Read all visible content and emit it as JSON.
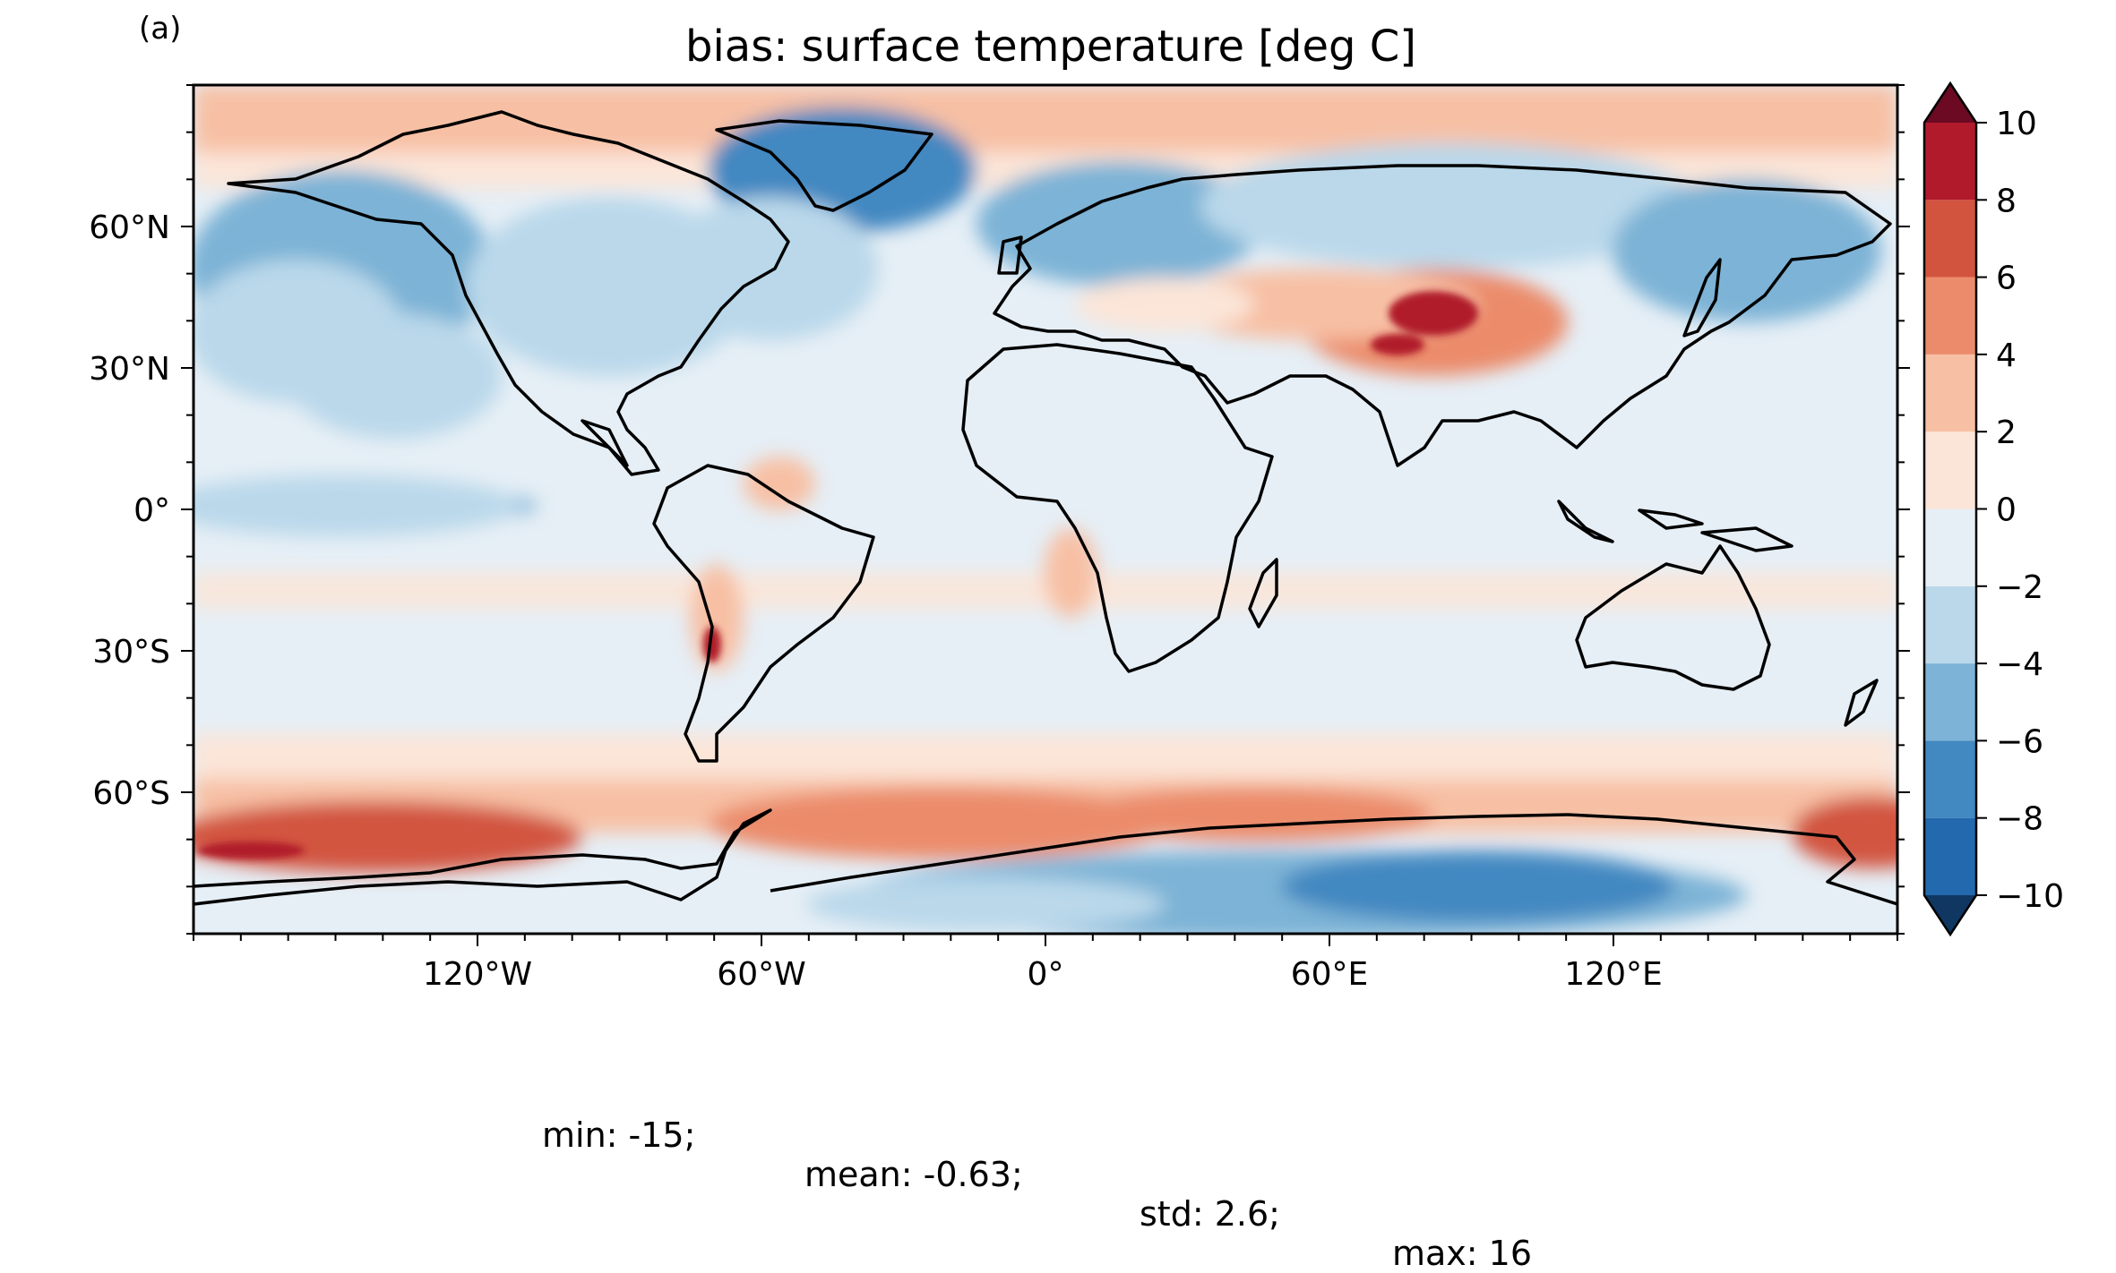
{
  "panel_label": "(a)",
  "title": "bias: surface temperature [deg C]",
  "map": {
    "projection": "equirectangular",
    "lon_range": [
      -180,
      180
    ],
    "lat_range": [
      -90,
      90
    ],
    "x_ticks": [
      {
        "lon": -120,
        "label": "120°W"
      },
      {
        "lon": -60,
        "label": "60°W"
      },
      {
        "lon": 0,
        "label": "0°"
      },
      {
        "lon": 60,
        "label": "60°E"
      },
      {
        "lon": 120,
        "label": "120°E"
      }
    ],
    "y_ticks": [
      {
        "lat": 60,
        "label": "60°N"
      },
      {
        "lat": 30,
        "label": "30°N"
      },
      {
        "lat": 0,
        "label": "0°"
      },
      {
        "lat": -30,
        "label": "30°S"
      },
      {
        "lat": -60,
        "label": "60°S"
      }
    ],
    "coastlines": true,
    "field": "surface temperature bias"
  },
  "colorbar": {
    "ticks": [
      {
        "value": 10,
        "label": "10"
      },
      {
        "value": 8,
        "label": "8"
      },
      {
        "value": 6,
        "label": "6"
      },
      {
        "value": 4,
        "label": "4"
      },
      {
        "value": 2,
        "label": "2"
      },
      {
        "value": 0,
        "label": "0"
      },
      {
        "value": -2,
        "label": "−2"
      },
      {
        "value": -4,
        "label": "−4"
      },
      {
        "value": -6,
        "label": "−6"
      },
      {
        "value": -8,
        "label": "−8"
      },
      {
        "value": -10,
        "label": "−10"
      }
    ],
    "extend": "both",
    "colors": [
      "#164f8f",
      "#2369ad",
      "#4288c1",
      "#7db3d6",
      "#bad8ea",
      "#e6eff6",
      "#fbe5d8",
      "#f7c0a4",
      "#eb8b6b",
      "#d2543f",
      "#b01a2b"
    ],
    "over_color": "#6b0a22",
    "under_color": "#0f3761"
  },
  "stats": {
    "min": "min: -15;",
    "mean": "mean: -0.63;",
    "std": "std: 2.6;",
    "max": "max: 16"
  }
}
